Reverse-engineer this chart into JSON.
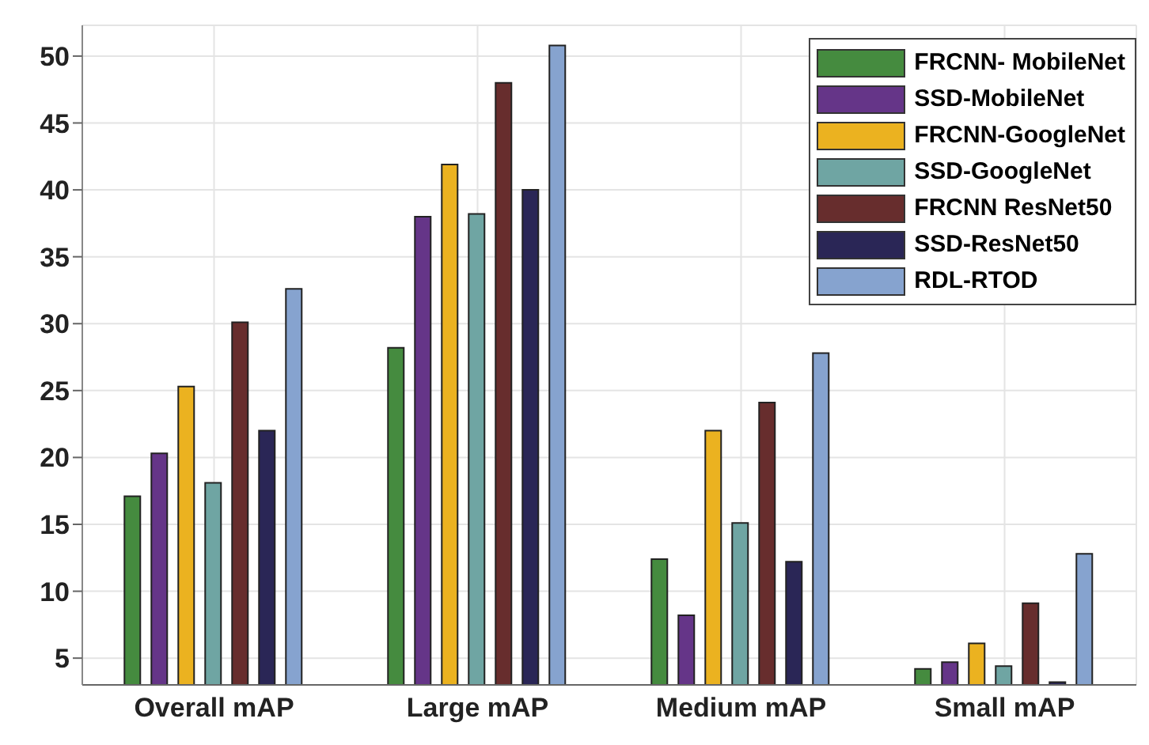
{
  "chart_data": {
    "type": "bar",
    "categories": [
      "Overall mAP",
      "Large mAP",
      "Medium mAP",
      "Small mAP"
    ],
    "series": [
      {
        "name": "FRCNN- MobileNet",
        "color": "#458b3f",
        "values": [
          17.1,
          28.2,
          12.4,
          4.2
        ]
      },
      {
        "name": "SSD-MobileNet",
        "color": "#653588",
        "values": [
          20.3,
          38,
          8.2,
          4.7
        ]
      },
      {
        "name": "FRCNN-GoogleNet",
        "color": "#ebb220",
        "values": [
          25.3,
          41.9,
          22,
          6.1
        ]
      },
      {
        "name": "SSD-GoogleNet",
        "color": "#6fa5a3",
        "values": [
          18.1,
          38.2,
          15.1,
          4.4
        ]
      },
      {
        "name": "FRCNN ResNet50",
        "color": "#672d2d",
        "values": [
          30.1,
          48,
          24.1,
          9.1
        ]
      },
      {
        "name": "SSD-ResNet50",
        "color": "#2a2656",
        "values": [
          22,
          40,
          12.2,
          3.2
        ]
      },
      {
        "name": "RDL-RTOD",
        "color": "#86a3cf",
        "values": [
          32.6,
          50.8,
          27.8,
          12.8
        ]
      }
    ],
    "ylim": [
      3,
      52.3
    ],
    "yticks": [
      5,
      10,
      15,
      20,
      25,
      30,
      35,
      40,
      45,
      50
    ],
    "grid": true,
    "legend": "top right"
  }
}
